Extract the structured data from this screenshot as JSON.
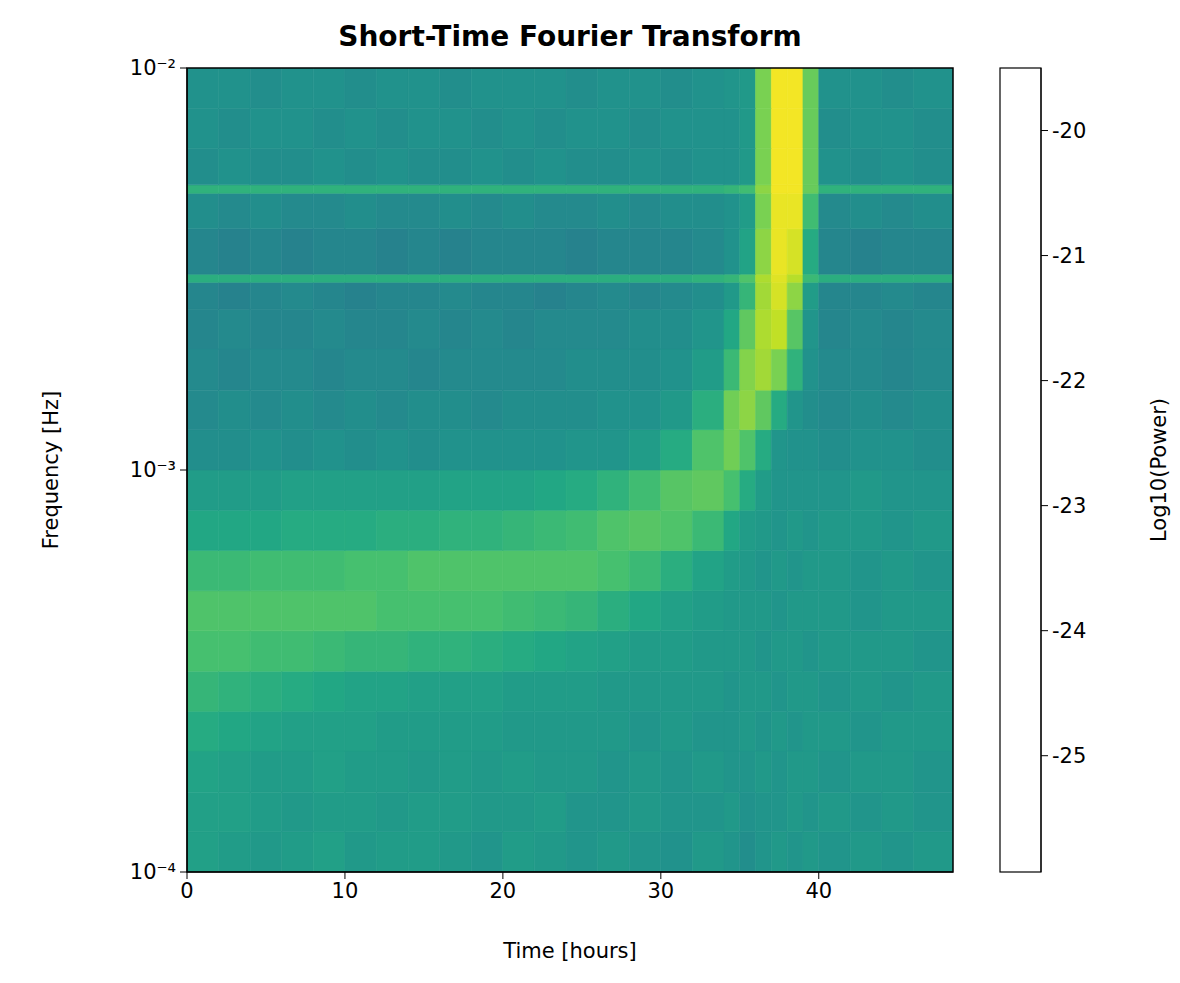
{
  "chart_data": {
    "type": "heatmap",
    "title": "Short-Time Fourier Transform",
    "x_label": "Time [hours]",
    "y_label": "Frequency [Hz]",
    "xlim": [
      0,
      48.5
    ],
    "xticks": [
      0,
      10,
      20,
      30,
      40
    ],
    "ylim": [
      0.0001,
      0.01
    ],
    "yticks": [
      {
        "value": 0.0001,
        "label": "10⁻⁴"
      },
      {
        "value": 0.001,
        "label": "10⁻³"
      },
      {
        "value": 0.01,
        "label": "10⁻²"
      }
    ],
    "log": "y",
    "time_bins": [
      0,
      2,
      4,
      6,
      8,
      10,
      12,
      14,
      16,
      18,
      20,
      22,
      24,
      26,
      28,
      30,
      32,
      34,
      35,
      36,
      37,
      38,
      39,
      40,
      42,
      44,
      46,
      48.5
    ],
    "frequency_bins": [
      0.0001,
      0.000126,
      0.000158,
      0.0002,
      0.000251,
      0.000316,
      0.000398,
      0.000501,
      0.000631,
      0.000794,
      0.001,
      0.00126,
      0.00158,
      0.002,
      0.00251,
      0.00293,
      0.00307,
      0.00398,
      0.00488,
      0.00512,
      0.00631,
      0.00794,
      0.01
    ],
    "power": [
      [
        -22.3,
        -22.4,
        -22.5,
        -22.4,
        -22.3,
        -22.5,
        -22.4,
        -22.4,
        -22.5,
        -22.6,
        -22.4,
        -22.5,
        -22.6,
        -22.5,
        -22.6,
        -22.7,
        -22.5,
        -22.6,
        -22.8,
        -22.6,
        -22.5,
        -22.6,
        -22.5,
        -22.6,
        -22.5,
        -22.6,
        -22.5
      ],
      [
        -22.3,
        -22.3,
        -22.4,
        -22.5,
        -22.4,
        -22.4,
        -22.5,
        -22.4,
        -22.4,
        -22.5,
        -22.5,
        -22.4,
        -22.6,
        -22.6,
        -22.5,
        -22.6,
        -22.6,
        -22.5,
        -22.7,
        -22.6,
        -22.6,
        -22.5,
        -22.6,
        -22.5,
        -22.6,
        -22.5,
        -22.6
      ],
      [
        -22.2,
        -22.3,
        -22.4,
        -22.4,
        -22.3,
        -22.4,
        -22.4,
        -22.5,
        -22.4,
        -22.5,
        -22.4,
        -22.5,
        -22.5,
        -22.6,
        -22.5,
        -22.6,
        -22.5,
        -22.6,
        -22.6,
        -22.5,
        -22.6,
        -22.5,
        -22.5,
        -22.6,
        -22.5,
        -22.5,
        -22.6
      ],
      [
        -22.0,
        -22.1,
        -22.2,
        -22.3,
        -22.3,
        -22.3,
        -22.4,
        -22.4,
        -22.4,
        -22.4,
        -22.5,
        -22.5,
        -22.5,
        -22.5,
        -22.6,
        -22.5,
        -22.6,
        -22.6,
        -22.5,
        -22.6,
        -22.5,
        -22.6,
        -22.5,
        -22.5,
        -22.6,
        -22.5,
        -22.5
      ],
      [
        -21.7,
        -21.8,
        -21.9,
        -22.0,
        -22.1,
        -22.2,
        -22.2,
        -22.3,
        -22.3,
        -22.3,
        -22.4,
        -22.4,
        -22.4,
        -22.5,
        -22.5,
        -22.5,
        -22.5,
        -22.6,
        -22.5,
        -22.5,
        -22.6,
        -22.5,
        -22.5,
        -22.6,
        -22.5,
        -22.6,
        -22.5
      ],
      [
        -21.4,
        -21.4,
        -21.5,
        -21.5,
        -21.6,
        -21.7,
        -21.7,
        -21.8,
        -21.8,
        -21.9,
        -22.0,
        -22.1,
        -22.2,
        -22.3,
        -22.4,
        -22.4,
        -22.5,
        -22.5,
        -22.5,
        -22.6,
        -22.5,
        -22.5,
        -22.6,
        -22.5,
        -22.5,
        -22.5,
        -22.6
      ],
      [
        -21.3,
        -21.3,
        -21.3,
        -21.3,
        -21.3,
        -21.3,
        -21.4,
        -21.4,
        -21.4,
        -21.4,
        -21.5,
        -21.6,
        -21.7,
        -21.9,
        -22.1,
        -22.3,
        -22.4,
        -22.5,
        -22.5,
        -22.5,
        -22.6,
        -22.5,
        -22.5,
        -22.5,
        -22.6,
        -22.5,
        -22.5
      ],
      [
        -21.6,
        -21.6,
        -21.5,
        -21.5,
        -21.5,
        -21.4,
        -21.4,
        -21.3,
        -21.3,
        -21.3,
        -21.3,
        -21.3,
        -21.3,
        -21.4,
        -21.6,
        -21.9,
        -22.2,
        -22.4,
        -22.5,
        -22.6,
        -22.5,
        -22.6,
        -22.5,
        -22.5,
        -22.6,
        -22.5,
        -22.6
      ],
      [
        -22.1,
        -22.1,
        -22.1,
        -22.0,
        -22.0,
        -22.0,
        -21.9,
        -21.9,
        -21.8,
        -21.8,
        -21.7,
        -21.6,
        -21.5,
        -21.3,
        -21.2,
        -21.3,
        -21.6,
        -22.1,
        -22.4,
        -22.5,
        -22.6,
        -22.5,
        -22.6,
        -22.5,
        -22.5,
        -22.6,
        -22.5
      ],
      [
        -22.4,
        -22.4,
        -22.4,
        -22.3,
        -22.3,
        -22.3,
        -22.3,
        -22.3,
        -22.2,
        -22.2,
        -22.2,
        -22.1,
        -22.0,
        -21.8,
        -21.5,
        -21.2,
        -21.1,
        -21.4,
        -22.0,
        -22.4,
        -22.6,
        -22.6,
        -22.6,
        -22.6,
        -22.5,
        -22.6,
        -22.6
      ],
      [
        -22.8,
        -22.8,
        -22.7,
        -22.8,
        -22.7,
        -22.8,
        -22.7,
        -22.8,
        -22.7,
        -22.7,
        -22.7,
        -22.7,
        -22.6,
        -22.6,
        -22.4,
        -22.0,
        -21.3,
        -20.9,
        -21.3,
        -22.0,
        -22.6,
        -22.7,
        -22.7,
        -22.8,
        -22.7,
        -22.7,
        -22.8
      ],
      [
        -22.9,
        -22.8,
        -22.9,
        -22.8,
        -22.9,
        -22.8,
        -22.9,
        -22.8,
        -22.8,
        -22.9,
        -22.8,
        -22.8,
        -22.8,
        -22.7,
        -22.7,
        -22.5,
        -21.9,
        -20.9,
        -20.6,
        -21.1,
        -22.0,
        -22.6,
        -22.8,
        -22.9,
        -22.8,
        -22.9,
        -22.8
      ],
      [
        -22.9,
        -23.0,
        -22.9,
        -22.9,
        -23.0,
        -22.9,
        -22.9,
        -23.0,
        -22.9,
        -22.9,
        -22.9,
        -22.9,
        -22.8,
        -22.8,
        -22.8,
        -22.7,
        -22.4,
        -21.6,
        -20.7,
        -20.4,
        -20.8,
        -21.8,
        -22.7,
        -22.9,
        -22.9,
        -23.0,
        -22.9
      ],
      [
        -23.0,
        -22.9,
        -23.0,
        -23.0,
        -22.9,
        -23.0,
        -23.0,
        -22.9,
        -23.0,
        -22.9,
        -23.0,
        -22.9,
        -22.9,
        -22.9,
        -22.8,
        -22.8,
        -22.6,
        -22.1,
        -21.1,
        -20.3,
        -20.1,
        -21.2,
        -22.6,
        -23.0,
        -22.9,
        -23.0,
        -22.9
      ],
      [
        -23.0,
        -23.1,
        -23.0,
        -22.9,
        -23.0,
        -23.1,
        -23.0,
        -23.0,
        -22.9,
        -23.0,
        -23.0,
        -23.1,
        -23.0,
        -22.9,
        -23.0,
        -22.9,
        -22.8,
        -22.5,
        -21.7,
        -20.4,
        -19.9,
        -20.6,
        -22.4,
        -23.0,
        -23.0,
        -22.9,
        -23.0
      ],
      [
        -21.9,
        -21.9,
        -21.9,
        -21.9,
        -21.9,
        -21.9,
        -21.9,
        -21.9,
        -21.9,
        -21.9,
        -21.9,
        -21.9,
        -21.9,
        -21.9,
        -21.9,
        -21.9,
        -21.8,
        -21.7,
        -21.3,
        -20.3,
        -19.8,
        -20.2,
        -21.6,
        -21.9,
        -21.9,
        -21.9,
        -21.9
      ],
      [
        -23.0,
        -23.1,
        -23.0,
        -23.1,
        -23.0,
        -23.0,
        -23.1,
        -23.0,
        -23.1,
        -23.0,
        -23.0,
        -23.0,
        -23.1,
        -23.0,
        -23.0,
        -23.0,
        -22.9,
        -22.7,
        -22.2,
        -20.6,
        -19.7,
        -19.9,
        -22.0,
        -23.0,
        -23.1,
        -23.0,
        -23.0
      ],
      [
        -22.8,
        -22.9,
        -22.8,
        -22.9,
        -22.9,
        -22.8,
        -22.9,
        -22.9,
        -22.8,
        -22.9,
        -22.8,
        -22.9,
        -22.9,
        -22.8,
        -22.9,
        -22.8,
        -22.8,
        -22.7,
        -22.4,
        -20.8,
        -19.7,
        -19.7,
        -21.5,
        -22.9,
        -22.8,
        -22.9,
        -22.8
      ],
      [
        -21.8,
        -21.8,
        -21.8,
        -21.8,
        -21.8,
        -21.8,
        -21.8,
        -21.8,
        -21.8,
        -21.8,
        -21.8,
        -21.8,
        -21.8,
        -21.8,
        -21.8,
        -21.8,
        -21.8,
        -21.7,
        -21.5,
        -20.6,
        -19.6,
        -19.6,
        -21.0,
        -21.8,
        -21.8,
        -21.8,
        -21.8
      ],
      [
        -22.8,
        -22.7,
        -22.8,
        -22.8,
        -22.7,
        -22.8,
        -22.7,
        -22.8,
        -22.8,
        -22.7,
        -22.8,
        -22.7,
        -22.8,
        -22.8,
        -22.7,
        -22.8,
        -22.7,
        -22.7,
        -22.5,
        -20.8,
        -19.6,
        -19.6,
        -21.0,
        -22.7,
        -22.8,
        -22.7,
        -22.8
      ],
      [
        -22.7,
        -22.8,
        -22.7,
        -22.7,
        -22.8,
        -22.7,
        -22.8,
        -22.7,
        -22.7,
        -22.8,
        -22.7,
        -22.8,
        -22.7,
        -22.7,
        -22.8,
        -22.7,
        -22.7,
        -22.7,
        -22.5,
        -20.8,
        -19.6,
        -19.6,
        -21.0,
        -22.8,
        -22.7,
        -22.7,
        -22.8
      ],
      [
        -22.7,
        -22.7,
        -22.8,
        -22.7,
        -22.7,
        -22.8,
        -22.7,
        -22.7,
        -22.8,
        -22.7,
        -22.7,
        -22.7,
        -22.8,
        -22.7,
        -22.7,
        -22.8,
        -22.7,
        -22.6,
        -22.5,
        -20.8,
        -19.6,
        -19.6,
        -21.0,
        -22.7,
        -22.7,
        -22.8,
        -22.7
      ]
    ],
    "colorbar": {
      "label": "Log10(Power)",
      "range": [
        -25.93,
        -19.5
      ],
      "ticks": [
        -20,
        -21,
        -22,
        -23,
        -24,
        -25
      ]
    }
  }
}
